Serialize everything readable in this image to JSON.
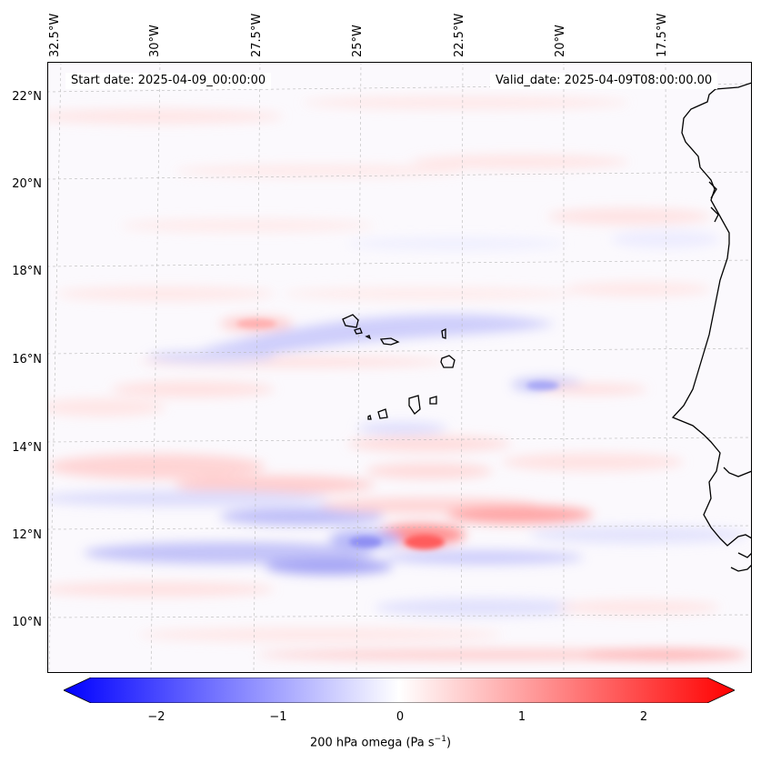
{
  "map": {
    "start_date": "Start date: 2025-04-09_00:00:00",
    "valid_date": "Valid_date: 2025-04-09T08:00:00.00",
    "lon_labels": [
      "32.5°W",
      "30°W",
      "27.5°W",
      "25°W",
      "22.5°W",
      "20°W",
      "17.5°W"
    ],
    "lat_labels": [
      "22°N",
      "20°N",
      "18°N",
      "16°N",
      "14°N",
      "12°N",
      "10°N"
    ]
  },
  "colorbar": {
    "ticks": [
      "−2",
      "−1",
      "0",
      "1",
      "2"
    ],
    "label": "200 hPa omega (Pa s",
    "label_sup": "−1",
    "label_end": ")",
    "colors": {
      "neg": "#0000ff",
      "zero": "#ffffff",
      "pos": "#ff0000"
    }
  }
}
